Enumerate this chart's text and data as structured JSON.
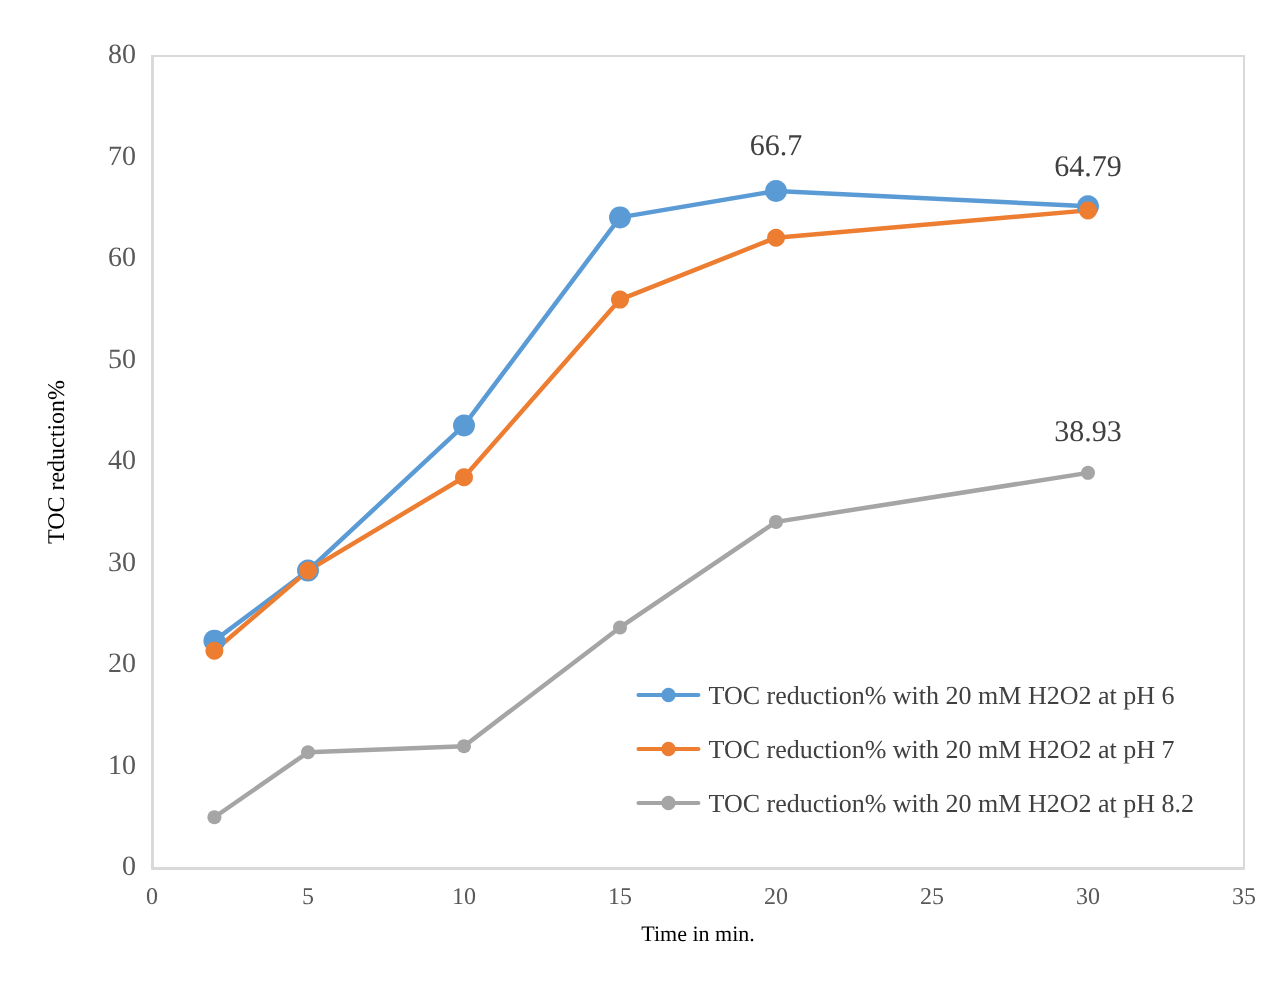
{
  "chart_data": {
    "type": "line",
    "xlabel": "Time in min.",
    "ylabel": "TOC reduction%",
    "x": [
      2,
      5,
      10,
      15,
      20,
      30
    ],
    "series": [
      {
        "name": "TOC reduction% with 20 mM H2O2 at pH 6",
        "color": "#5b9bd5",
        "values": [
          22.4,
          29.3,
          43.6,
          64.1,
          66.7,
          65.2
        ],
        "value_labels": [
          null,
          null,
          null,
          null,
          "66.7",
          null
        ]
      },
      {
        "name": "TOC reduction% with 20 mM H2O2 at pH 7",
        "color": "#ed7d31",
        "values": [
          21.4,
          29.3,
          38.5,
          56.0,
          62.1,
          64.79
        ],
        "value_labels": [
          null,
          null,
          null,
          null,
          null,
          "64.79"
        ]
      },
      {
        "name": "TOC reduction% with 20 mM H2O2 at pH 8.2",
        "color": "#a5a5a5",
        "values": [
          5.0,
          11.4,
          12.0,
          23.7,
          34.1,
          38.93
        ],
        "value_labels": [
          null,
          null,
          null,
          null,
          null,
          "38.93"
        ]
      }
    ],
    "xlim": [
      0,
      35
    ],
    "xticks": [
      0,
      5,
      10,
      15,
      20,
      25,
      30,
      35
    ],
    "ylim": [
      0,
      80
    ],
    "yticks": [
      0,
      10,
      20,
      30,
      40,
      50,
      60,
      70,
      80
    ],
    "grid": false,
    "legend": "bottom right",
    "marker": "circle",
    "line_style": "solid"
  }
}
